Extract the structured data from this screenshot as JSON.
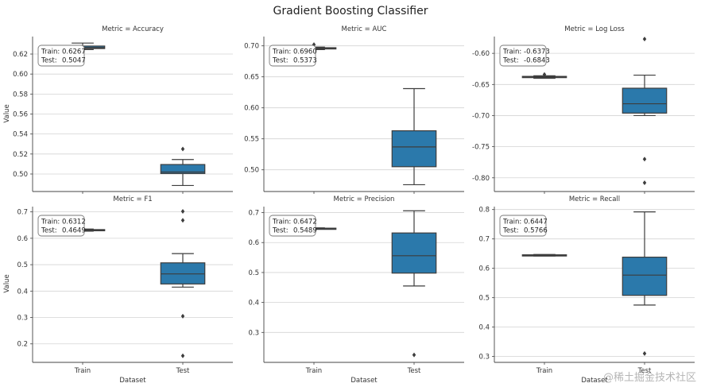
{
  "chart_data": {
    "type": "box",
    "title": "Gradient Boosting Classifier",
    "xlabel": "Dataset",
    "ylabel": "Value",
    "categories": [
      "Train",
      "Test"
    ],
    "box_color": "#2b79ab",
    "panels": [
      {
        "title": "Metric = Accuracy",
        "ylim": [
          0.4825,
          0.6375
        ],
        "yticks": [
          0.5,
          0.52,
          0.54,
          0.56,
          0.58,
          0.6,
          0.62
        ],
        "tick_decimals": 2,
        "annotation": {
          "train_label": "Train:",
          "train_value": "0.6267",
          "test_label": "Test:",
          "test_value": "0.5047"
        },
        "boxes": [
          {
            "category": "Train",
            "whisker_low": 0.6245,
            "q1": 0.6255,
            "median": 0.6265,
            "q3": 0.628,
            "whisker_high": 0.631,
            "outliers": []
          },
          {
            "category": "Test",
            "whisker_low": 0.4885,
            "q1": 0.5005,
            "median": 0.502,
            "q3": 0.5095,
            "whisker_high": 0.5145,
            "outliers": [
              0.525
            ]
          }
        ]
      },
      {
        "title": "Metric = AUC",
        "ylim": [
          0.465,
          0.715
        ],
        "yticks": [
          0.5,
          0.55,
          0.6,
          0.65,
          0.7
        ],
        "tick_decimals": 2,
        "annotation": {
          "train_label": "Train:",
          "train_value": "0.6960",
          "test_label": "Test:",
          "test_value": "0.5373"
        },
        "boxes": [
          {
            "category": "Train",
            "whisker_low": 0.694,
            "q1": 0.695,
            "median": 0.696,
            "q3": 0.697,
            "whisker_high": 0.698,
            "outliers": [
              0.702,
              0.691
            ]
          },
          {
            "category": "Test",
            "whisker_low": 0.476,
            "q1": 0.505,
            "median": 0.537,
            "q3": 0.563,
            "whisker_high": 0.631,
            "outliers": []
          }
        ]
      },
      {
        "title": "Metric = Log Loss",
        "ylim": [
          -0.822,
          -0.573
        ],
        "yticks": [
          -0.8,
          -0.75,
          -0.7,
          -0.65,
          -0.6
        ],
        "tick_decimals": 2,
        "annotation": {
          "train_label": "Train:",
          "train_value": "-0.6373",
          "test_label": "Test:",
          "test_value": "-0.6843"
        },
        "boxes": [
          {
            "category": "Train",
            "whisker_low": -0.64,
            "q1": -0.639,
            "median": -0.638,
            "q3": -0.637,
            "whisker_high": -0.636,
            "outliers": [
              -0.634
            ]
          },
          {
            "category": "Test",
            "whisker_low": -0.7,
            "q1": -0.696,
            "median": -0.681,
            "q3": -0.656,
            "whisker_high": -0.635,
            "outliers": [
              -0.577,
              -0.77,
              -0.808
            ]
          }
        ]
      },
      {
        "title": "Metric = F1",
        "ylim": [
          0.13,
          0.72
        ],
        "yticks": [
          0.2,
          0.3,
          0.4,
          0.5,
          0.6,
          0.7
        ],
        "tick_decimals": 1,
        "annotation": {
          "train_label": "Train:",
          "train_value": "0.6312",
          "test_label": "Test:",
          "test_value": "0.4649"
        },
        "boxes": [
          {
            "category": "Train",
            "whisker_low": 0.627,
            "q1": 0.629,
            "median": 0.631,
            "q3": 0.633,
            "whisker_high": 0.635,
            "outliers": []
          },
          {
            "category": "Test",
            "whisker_low": 0.415,
            "q1": 0.427,
            "median": 0.465,
            "q3": 0.507,
            "whisker_high": 0.542,
            "outliers": [
              0.702,
              0.668,
              0.305,
              0.155
            ]
          }
        ]
      },
      {
        "title": "Metric = Precision",
        "ylim": [
          0.2,
          0.72
        ],
        "yticks": [
          0.3,
          0.4,
          0.5,
          0.6,
          0.7
        ],
        "tick_decimals": 1,
        "annotation": {
          "train_label": "Train:",
          "train_value": "0.6472",
          "test_label": "Test:",
          "test_value": "0.5489"
        },
        "boxes": [
          {
            "category": "Train",
            "whisker_low": 0.645,
            "q1": 0.646,
            "median": 0.647,
            "q3": 0.648,
            "whisker_high": 0.649,
            "outliers": []
          },
          {
            "category": "Test",
            "whisker_low": 0.455,
            "q1": 0.498,
            "median": 0.556,
            "q3": 0.632,
            "whisker_high": 0.706,
            "outliers": [
              0.225
            ]
          }
        ]
      },
      {
        "title": "Metric = Recall",
        "ylim": [
          0.28,
          0.81
        ],
        "yticks": [
          0.3,
          0.4,
          0.5,
          0.6,
          0.7,
          0.8
        ],
        "tick_decimals": 1,
        "annotation": {
          "train_label": "Train:",
          "train_value": "0.6447",
          "test_label": "Test:",
          "test_value": "0.5766"
        },
        "boxes": [
          {
            "category": "Train",
            "whisker_low": 0.642,
            "q1": 0.643,
            "median": 0.644,
            "q3": 0.646,
            "whisker_high": 0.647,
            "outliers": []
          },
          {
            "category": "Test",
            "whisker_low": 0.475,
            "q1": 0.508,
            "median": 0.577,
            "q3": 0.638,
            "whisker_high": 0.792,
            "outliers": [
              0.31
            ]
          }
        ]
      }
    ]
  },
  "watermark": "@稀土掘金技术社区"
}
